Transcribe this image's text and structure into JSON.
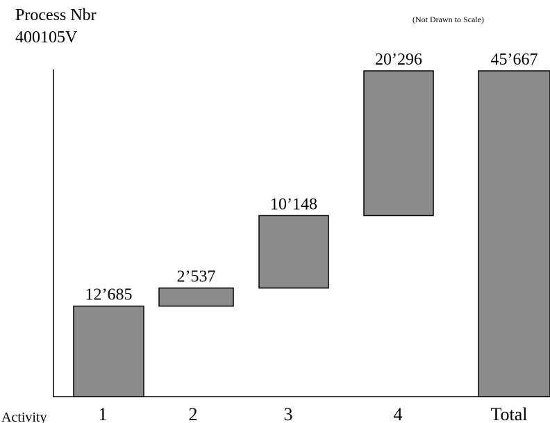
{
  "header": {
    "title_line1": "Process Nbr",
    "title_line2": "400105V",
    "note": "(Not Drawn to Scale)"
  },
  "chart_data": {
    "type": "bar",
    "subtype": "waterfall",
    "title": "Process Nbr 400105V",
    "xlabel": "Activity",
    "ylabel": "",
    "categories": [
      "1",
      "2",
      "3",
      "4",
      "Total"
    ],
    "values": [
      12685,
      2537,
      10148,
      20296,
      45667
    ],
    "value_labels": [
      "12’685",
      "2’537",
      "10’148",
      "20’296",
      "45’667"
    ],
    "is_total": [
      false,
      false,
      false,
      false,
      true
    ],
    "bar_color": "#8c8c8c",
    "grid": false,
    "legend": "none",
    "scale_note": "(Not Drawn to Scale)"
  }
}
